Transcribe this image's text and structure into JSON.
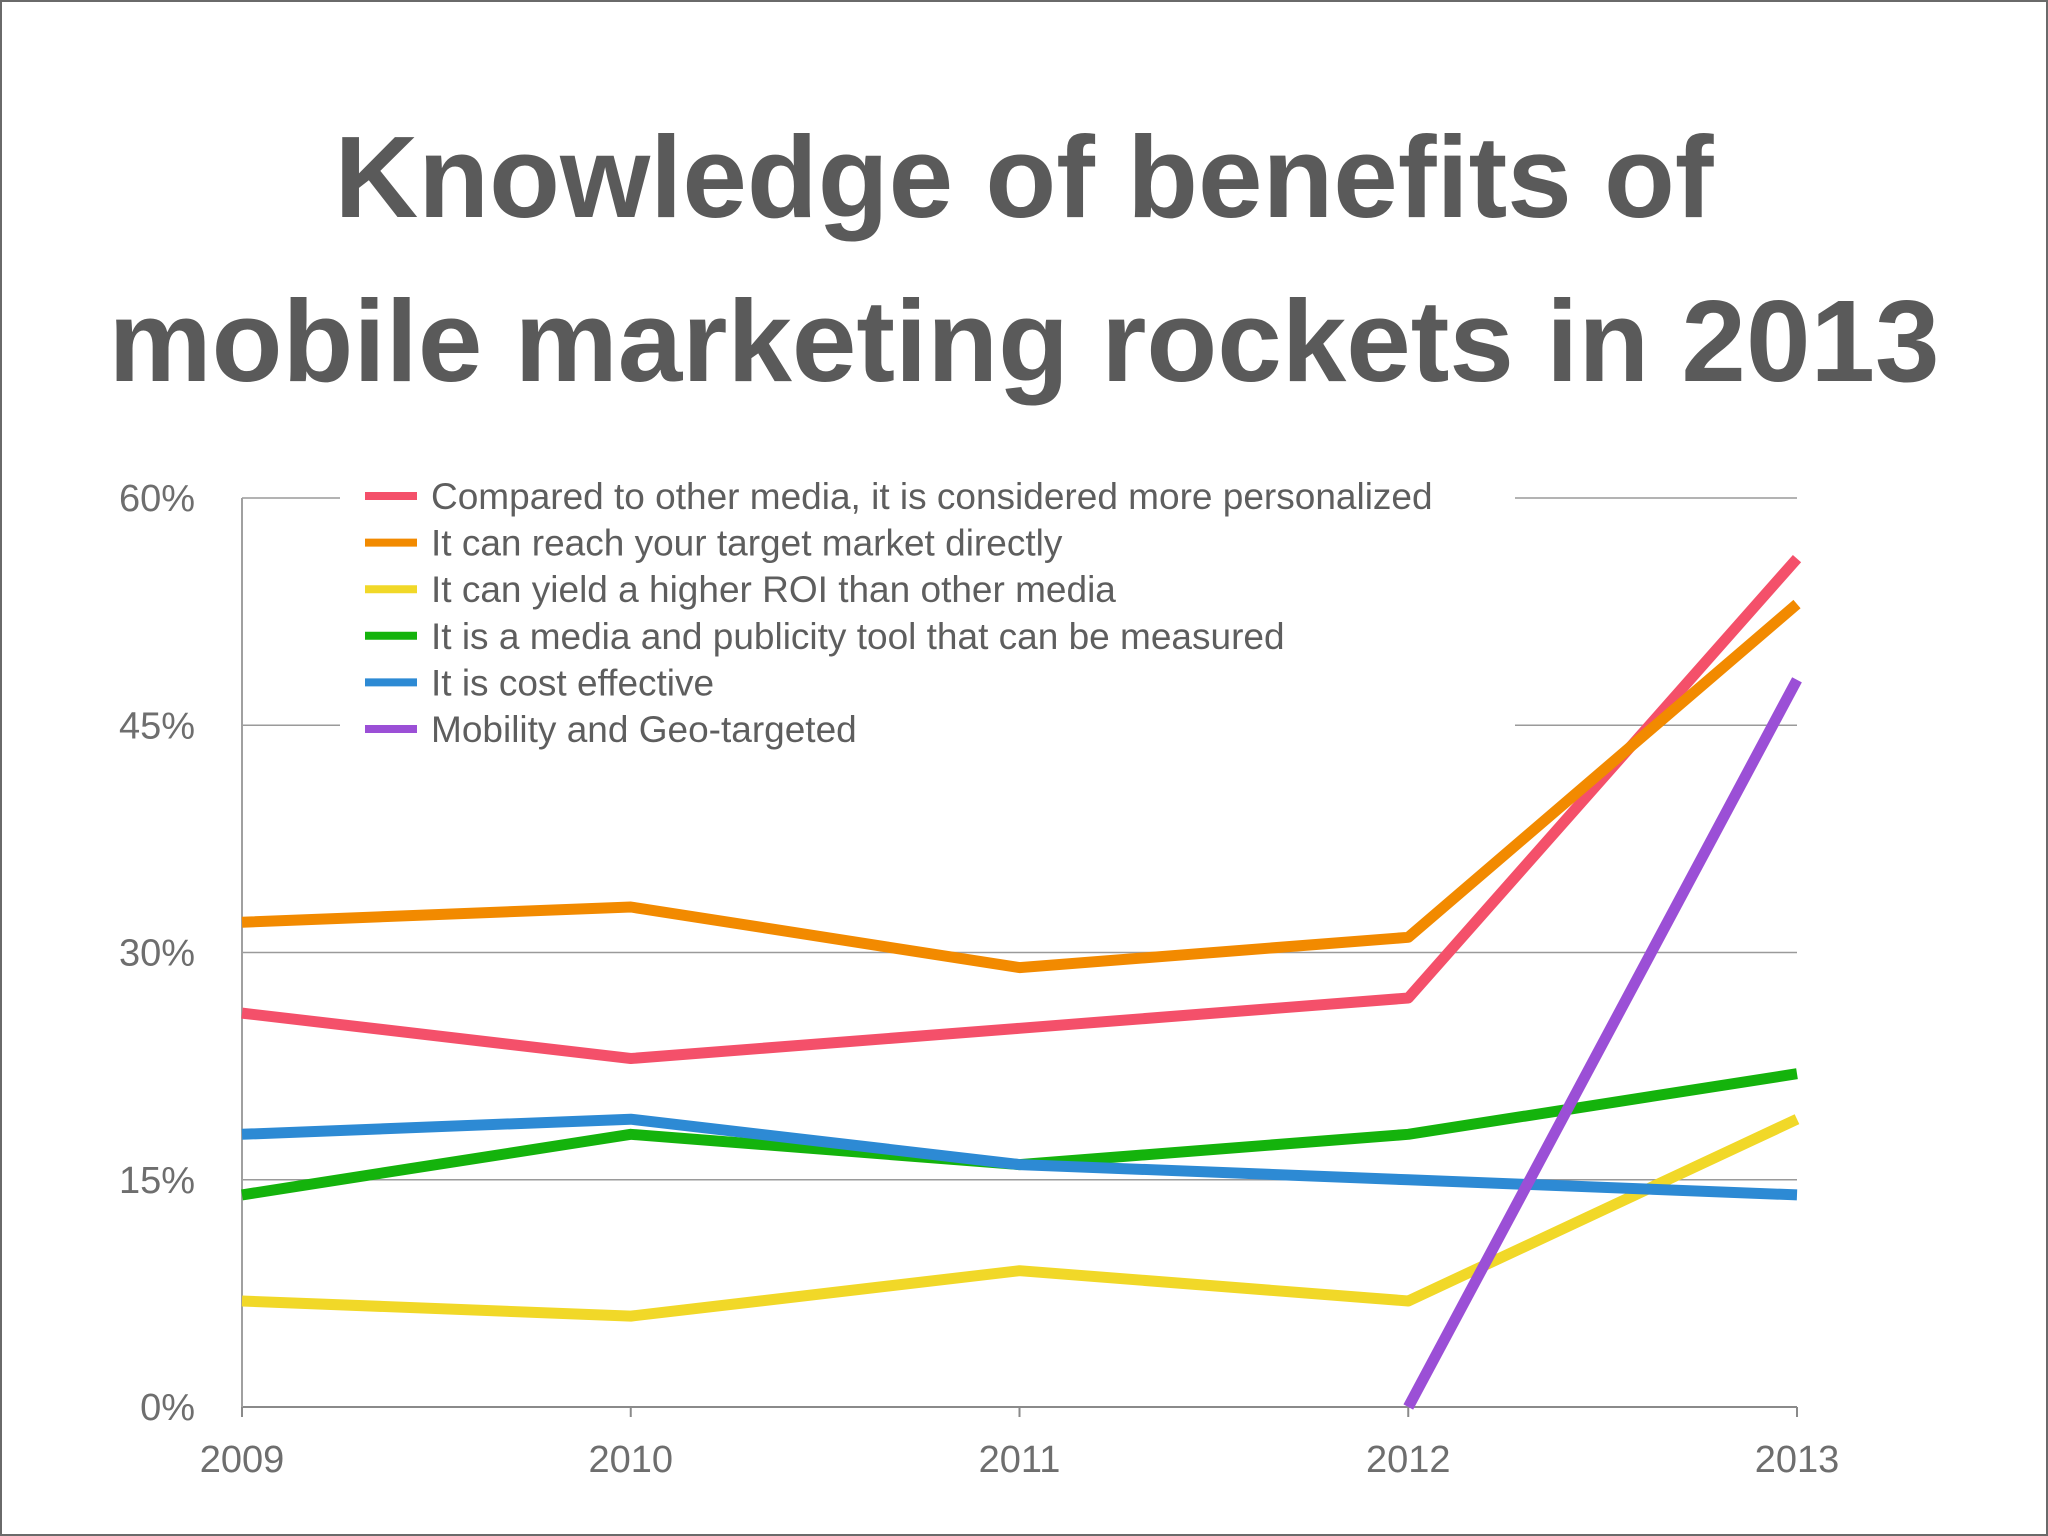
{
  "title": {
    "line1": "Knowledge of benefits of",
    "line2": "mobile marketing rockets in 2013"
  },
  "chart_data": {
    "type": "line",
    "title": "Knowledge of benefits of mobile marketing rockets in 2013",
    "x": [
      "2009",
      "2010",
      "2011",
      "2012",
      "2013"
    ],
    "y_ticks": [
      "0%",
      "15%",
      "30%",
      "45%",
      "60%"
    ],
    "ylim": [
      0,
      60
    ],
    "grid": true,
    "legend_position": "top",
    "series": [
      {
        "name": "Compared to other media, it is considered more personalized",
        "color": "#f4506a",
        "values": [
          26,
          23,
          25,
          27,
          56
        ]
      },
      {
        "name": "It can reach your target market directly",
        "color": "#f28a00",
        "values": [
          32,
          33,
          29,
          31,
          53
        ]
      },
      {
        "name": "It can yield a higher ROI than other media",
        "color": "#f1d828",
        "values": [
          7,
          6,
          9,
          7,
          19
        ]
      },
      {
        "name": "It is a media and publicity tool that can be measured",
        "color": "#14b30c",
        "values": [
          14,
          18,
          16,
          18,
          22
        ]
      },
      {
        "name": "It is cost effective",
        "color": "#2d8ad4",
        "values": [
          18,
          19,
          16,
          15,
          14
        ]
      },
      {
        "name": "Mobility and Geo-targeted",
        "color": "#9b4fd6",
        "values": [
          null,
          null,
          null,
          0,
          48
        ]
      }
    ]
  }
}
